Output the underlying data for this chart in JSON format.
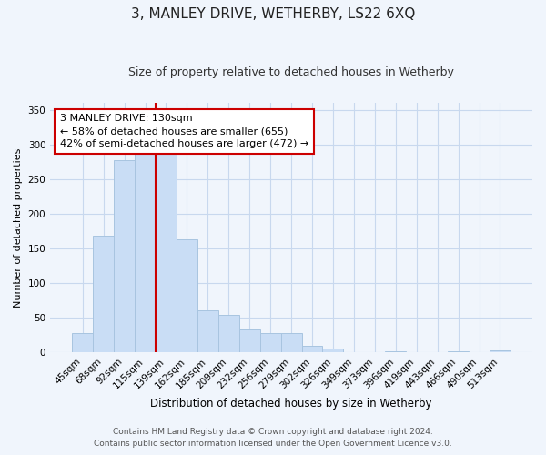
{
  "title": "3, MANLEY DRIVE, WETHERBY, LS22 6XQ",
  "subtitle": "Size of property relative to detached houses in Wetherby",
  "xlabel": "Distribution of detached houses by size in Wetherby",
  "ylabel": "Number of detached properties",
  "bar_labels": [
    "45sqm",
    "68sqm",
    "92sqm",
    "115sqm",
    "139sqm",
    "162sqm",
    "185sqm",
    "209sqm",
    "232sqm",
    "256sqm",
    "279sqm",
    "302sqm",
    "326sqm",
    "349sqm",
    "373sqm",
    "396sqm",
    "419sqm",
    "443sqm",
    "466sqm",
    "490sqm",
    "513sqm"
  ],
  "bar_values": [
    28,
    168,
    277,
    291,
    291,
    163,
    60,
    54,
    33,
    27,
    27,
    9,
    5,
    0,
    0,
    1,
    0,
    0,
    1,
    0,
    3
  ],
  "bar_color": "#c9ddf5",
  "bar_edge_color": "#a8c4e0",
  "vline_color": "#cc0000",
  "annotation_line1": "3 MANLEY DRIVE: 130sqm",
  "annotation_line2": "← 58% of detached houses are smaller (655)",
  "annotation_line3": "42% of semi-detached houses are larger (472) →",
  "annotation_box_color": "#ffffff",
  "annotation_box_edge": "#cc0000",
  "ylim": [
    0,
    360
  ],
  "yticks": [
    0,
    50,
    100,
    150,
    200,
    250,
    300,
    350
  ],
  "footer1": "Contains HM Land Registry data © Crown copyright and database right 2024.",
  "footer2": "Contains public sector information licensed under the Open Government Licence v3.0.",
  "background_color": "#f0f5fc",
  "plot_bg_color": "#f0f5fc",
  "grid_color": "#c8d8ee",
  "title_fontsize": 11,
  "subtitle_fontsize": 9,
  "ylabel_fontsize": 8,
  "xlabel_fontsize": 8.5,
  "tick_fontsize": 7.5,
  "footer_fontsize": 6.5
}
